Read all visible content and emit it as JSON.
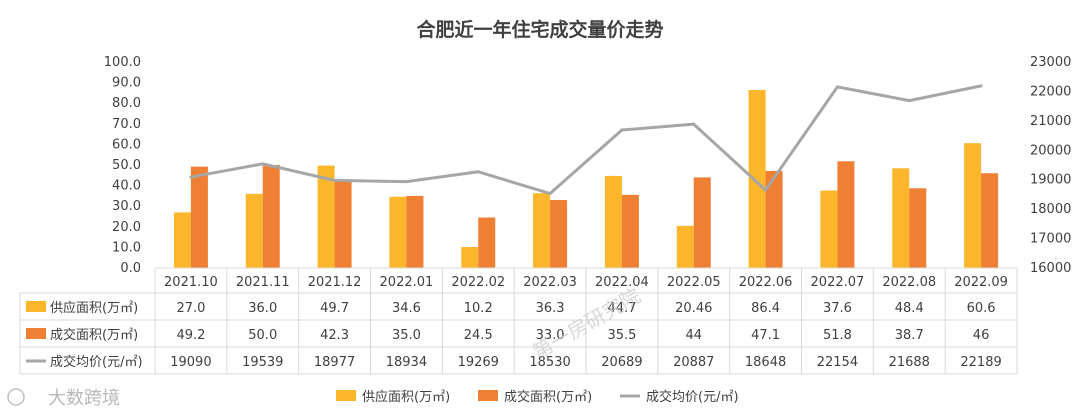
{
  "chart_data": {
    "type": "bar",
    "title": "合肥近一年住宅成交量价走势",
    "categories": [
      "2021.10",
      "2021.11",
      "2021.12",
      "2022.01",
      "2022.02",
      "2022.03",
      "2022.04",
      "2022.05",
      "2022.06",
      "2022.07",
      "2022.08",
      "2022.09"
    ],
    "series": [
      {
        "name": "供应面积(万㎡)",
        "type": "bar",
        "axis": "left",
        "color": "#FBB62C",
        "values": [
          27.0,
          36.0,
          49.7,
          34.6,
          10.2,
          36.3,
          44.7,
          20.46,
          86.4,
          37.6,
          48.4,
          60.6
        ],
        "labels": [
          "27.0",
          "36.0",
          "49.7",
          "34.6",
          "10.2",
          "36.3",
          "44.7",
          "20.46",
          "86.4",
          "37.6",
          "48.4",
          "60.6"
        ]
      },
      {
        "name": "成交面积(万㎡)",
        "type": "bar",
        "axis": "left",
        "color": "#EE7F33",
        "values": [
          49.2,
          50.0,
          42.3,
          35.0,
          24.5,
          33.0,
          35.5,
          44,
          47.1,
          51.8,
          38.7,
          46
        ],
        "labels": [
          "49.2",
          "50.0",
          "42.3",
          "35.0",
          "24.5",
          "33.0",
          "35.5",
          "44",
          "47.1",
          "51.8",
          "38.7",
          "46"
        ]
      },
      {
        "name": "成交均价(元/㎡)",
        "type": "line",
        "axis": "right",
        "color": "#A6A6A6",
        "values": [
          19090,
          19539,
          18977,
          18934,
          19269,
          18530,
          20689,
          20887,
          18648,
          22154,
          21688,
          22189
        ],
        "labels": [
          "19090",
          "19539",
          "18977",
          "18934",
          "19269",
          "18530",
          "20689",
          "20887",
          "18648",
          "22154",
          "21688",
          "22189"
        ]
      }
    ],
    "y_left": {
      "min": 0,
      "max": 100,
      "step": 10,
      "ticks": [
        "0.0",
        "10.0",
        "20.0",
        "30.0",
        "40.0",
        "50.0",
        "60.0",
        "70.0",
        "80.0",
        "90.0",
        "100.0"
      ]
    },
    "y_right": {
      "min": 16000,
      "max": 23000,
      "step": 1000,
      "ticks": [
        "16000",
        "17000",
        "18000",
        "19000",
        "20000",
        "21000",
        "22000",
        "23000"
      ]
    },
    "grid": false,
    "legend": "bottom",
    "data_table": true
  },
  "watermark": "第一房研究院",
  "logo_text": "大数跨境"
}
